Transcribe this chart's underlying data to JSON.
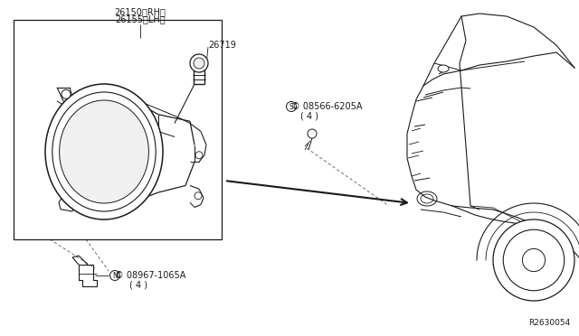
{
  "bg_color": "#ffffff",
  "line_color": "#1a1a1a",
  "diagram_id": "R2630054",
  "label_26150": "26150＜RH＞",
  "label_26155": "26155＜LH＞",
  "label_26719": "26719",
  "label_08566": "S 08566-6205A\n  ( 4 )",
  "label_08967": "N 08967-1065A\n       ( 4 )",
  "lw": 0.7
}
